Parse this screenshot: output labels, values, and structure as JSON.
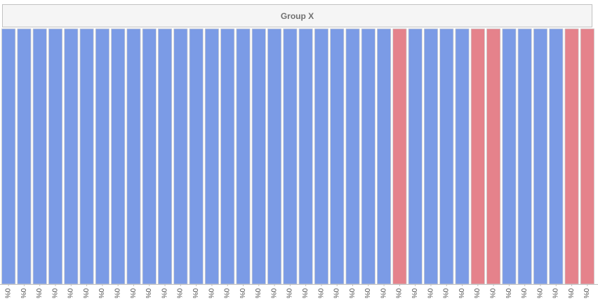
{
  "panel": {
    "title": "Group X"
  },
  "chart_data": {
    "type": "bar",
    "stacked": true,
    "orientation": "vertical",
    "title": "Group X",
    "ylim": [
      0,
      100
    ],
    "tick_label": "0%",
    "colors": {
      "blue": "#7b9be6",
      "red": "#e5828b"
    },
    "bars": [
      {
        "color": "blue",
        "value": 100
      },
      {
        "color": "blue",
        "value": 100
      },
      {
        "color": "blue",
        "value": 100
      },
      {
        "color": "blue",
        "value": 100
      },
      {
        "color": "blue",
        "value": 100
      },
      {
        "color": "blue",
        "value": 100
      },
      {
        "color": "blue",
        "value": 100
      },
      {
        "color": "blue",
        "value": 100
      },
      {
        "color": "blue",
        "value": 100
      },
      {
        "color": "blue",
        "value": 100
      },
      {
        "color": "blue",
        "value": 100
      },
      {
        "color": "blue",
        "value": 100
      },
      {
        "color": "blue",
        "value": 100
      },
      {
        "color": "blue",
        "value": 100
      },
      {
        "color": "blue",
        "value": 100
      },
      {
        "color": "blue",
        "value": 100
      },
      {
        "color": "blue",
        "value": 100
      },
      {
        "color": "blue",
        "value": 100
      },
      {
        "color": "blue",
        "value": 100
      },
      {
        "color": "blue",
        "value": 100
      },
      {
        "color": "blue",
        "value": 100
      },
      {
        "color": "blue",
        "value": 100
      },
      {
        "color": "blue",
        "value": 100
      },
      {
        "color": "blue",
        "value": 100
      },
      {
        "color": "blue",
        "value": 100
      },
      {
        "color": "red",
        "value": 100
      },
      {
        "color": "blue",
        "value": 100
      },
      {
        "color": "blue",
        "value": 100
      },
      {
        "color": "blue",
        "value": 100
      },
      {
        "color": "blue",
        "value": 100
      },
      {
        "color": "red",
        "value": 100
      },
      {
        "color": "red",
        "value": 100
      },
      {
        "color": "blue",
        "value": 100
      },
      {
        "color": "blue",
        "value": 100
      },
      {
        "color": "blue",
        "value": 100
      },
      {
        "color": "blue",
        "value": 100
      },
      {
        "color": "red",
        "value": 100
      },
      {
        "color": "red",
        "value": 100
      }
    ]
  }
}
